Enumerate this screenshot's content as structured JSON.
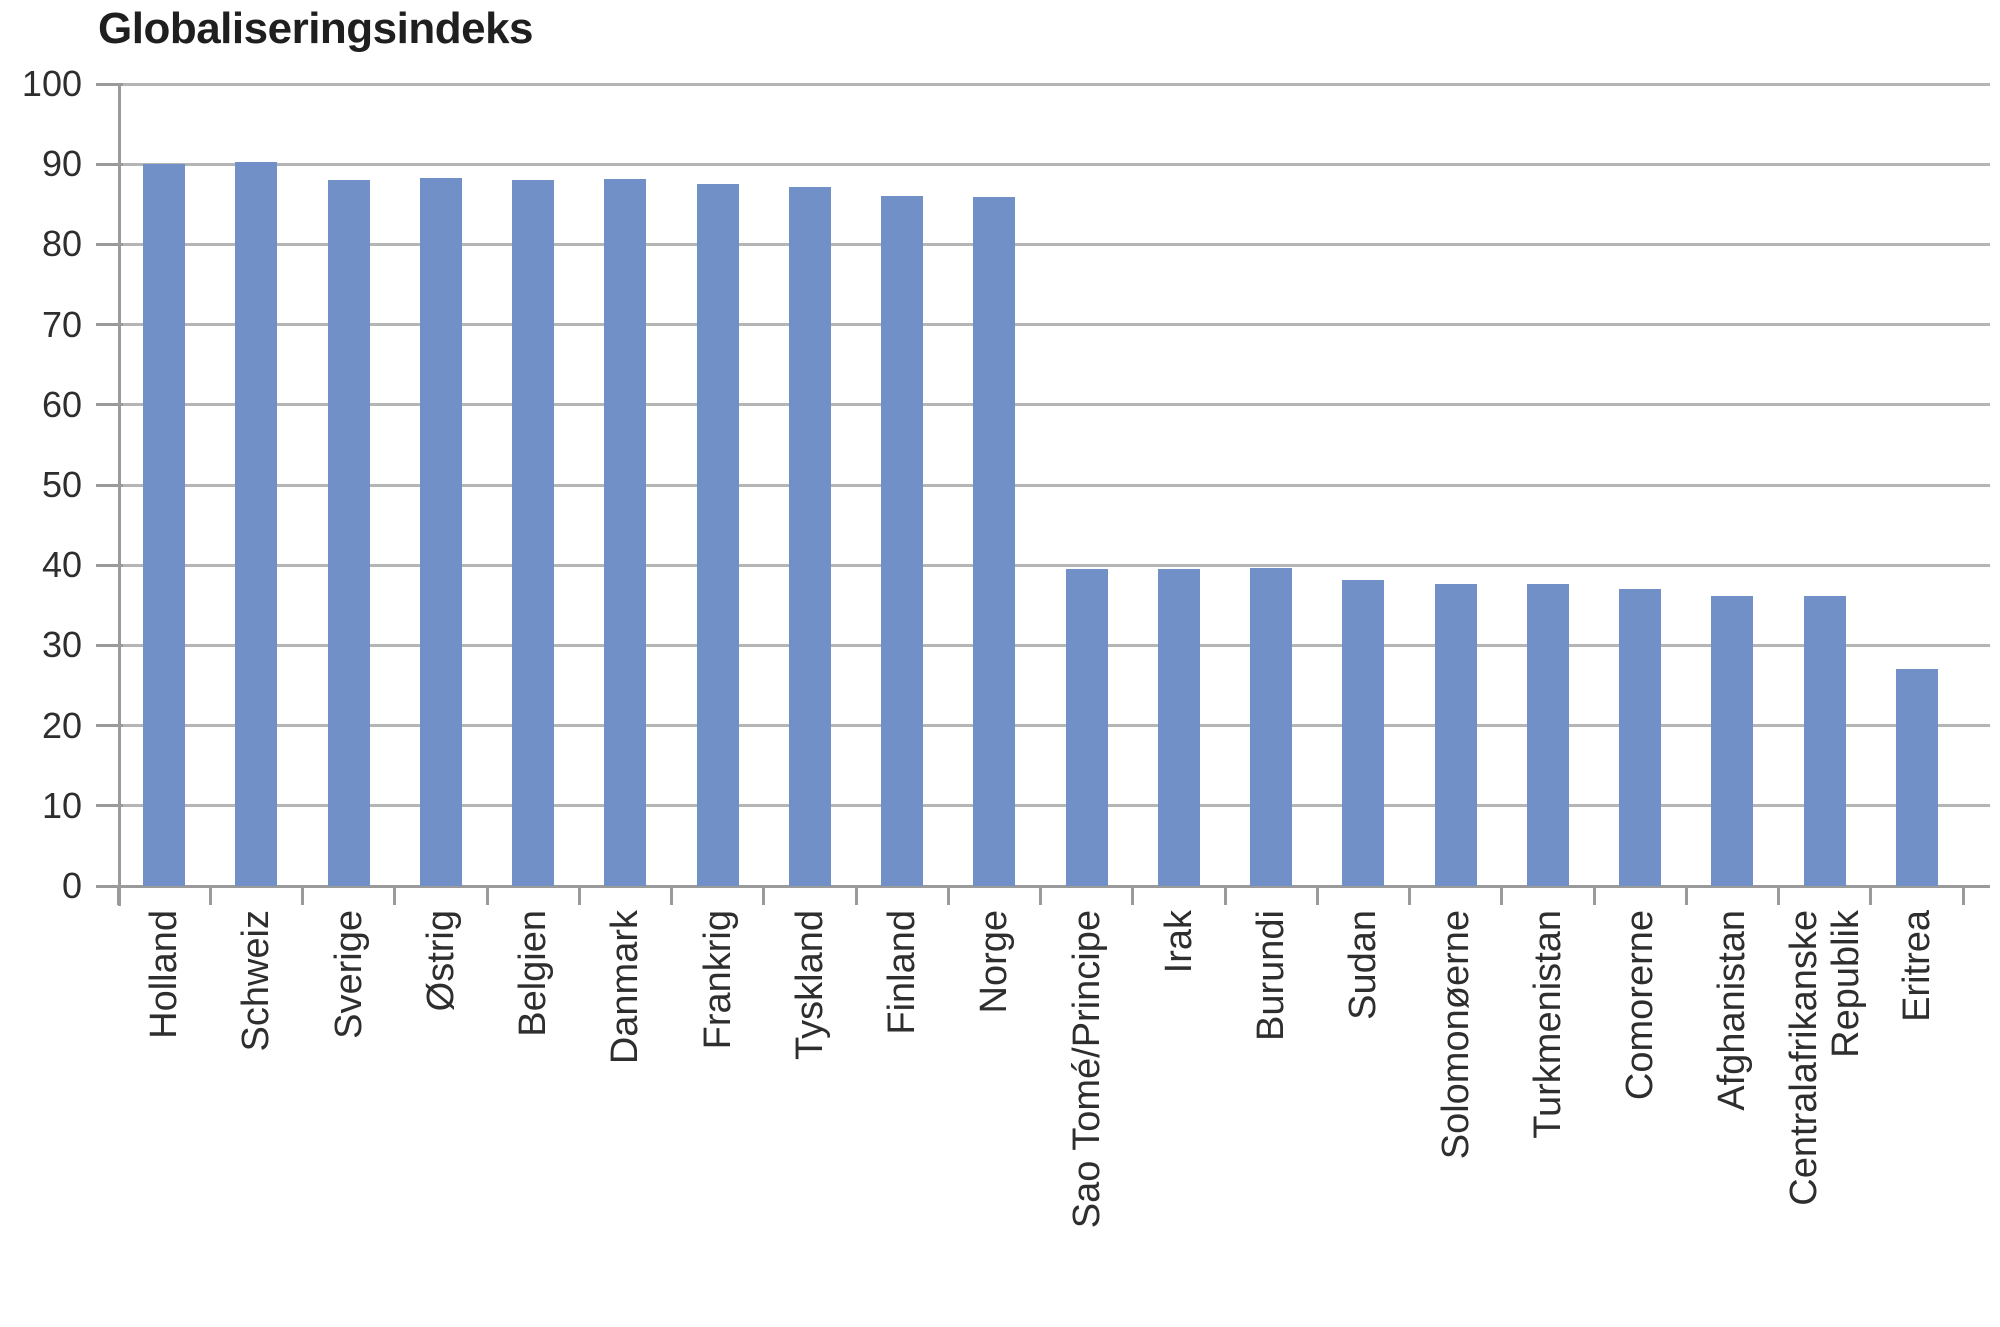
{
  "title": "Globaliseringsindeks",
  "chart_data": {
    "type": "bar",
    "title": "Globaliseringsindeks",
    "categories": [
      "Holland",
      "Schweiz",
      "Sverige",
      "Østrig",
      "Belgien",
      "Danmark",
      "Frankrig",
      "Tyskland",
      "Finland",
      "Norge",
      "Sao Tomé/Principe",
      "Irak",
      "Burundi",
      "Sudan",
      "Solomonøerne",
      "Turkmenistan",
      "Comorerne",
      "Afghanistan",
      "Centralafrikanske\nRepublik",
      "Eritrea"
    ],
    "values": [
      90,
      90.3,
      88,
      88.3,
      88,
      88.2,
      87.5,
      87.1,
      86,
      85.9,
      39.5,
      39.5,
      39.6,
      38.2,
      37.7,
      37.7,
      37,
      36.2,
      36.2,
      27
    ],
    "xlabel": "",
    "ylabel": "",
    "ylim": [
      0,
      100
    ],
    "yticks": [
      0,
      10,
      20,
      30,
      40,
      50,
      60,
      70,
      80,
      90,
      100
    ],
    "grid": true,
    "legend_position": "none",
    "bar_color": "#7290c8",
    "gridline_color": "#b5b5b5",
    "axis_color": "#9a9a9a",
    "text_color": "#2e2e2e",
    "title_color": "#1f1f1f",
    "background_color": "#ffffff"
  }
}
